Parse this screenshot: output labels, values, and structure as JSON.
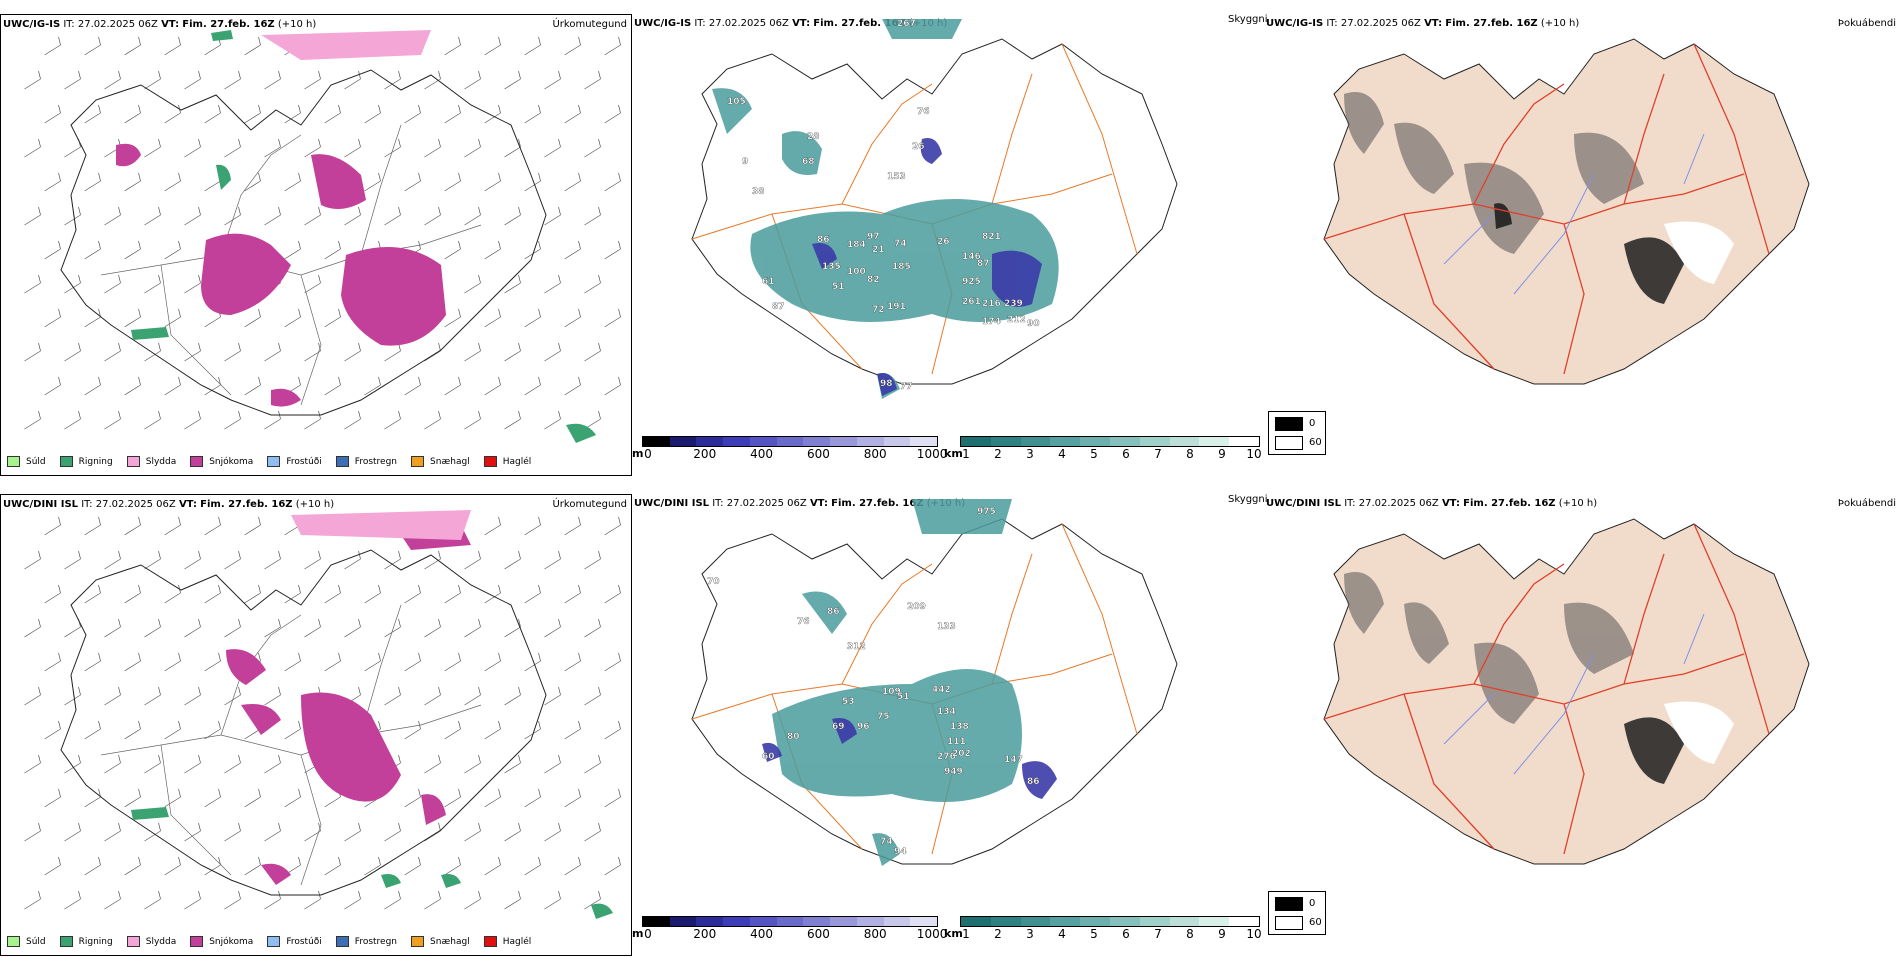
{
  "rows": [
    {
      "model": "UWC/IG-IS",
      "it": "IT: 27.02.2025 06Z",
      "vt_label": "VT:",
      "vt": "Fim. 27.feb. 16Z",
      "lead": "(+10 h)",
      "cloud_labels": [
        "267",
        "105",
        "9",
        "38",
        "68",
        "28",
        "153",
        "26",
        "76",
        "86",
        "184",
        "97",
        "21",
        "135",
        "100",
        "82",
        "51",
        "185",
        "74",
        "26",
        "146",
        "87",
        "821",
        "925",
        "61",
        "87",
        "72",
        "191",
        "261",
        "216",
        "239",
        "174",
        "212",
        "90",
        "98",
        "77"
      ]
    },
    {
      "model": "UWC/DINI ISL",
      "it": "IT: 27.02.2025 06Z",
      "vt_label": "VT:",
      "vt": "Fim. 27.feb. 16Z",
      "lead": "(+10 h)",
      "cloud_labels": [
        "975",
        "70",
        "76",
        "86",
        "209",
        "133",
        "312",
        "109",
        "51",
        "442",
        "53",
        "69",
        "96",
        "75",
        "134",
        "138",
        "80",
        "111",
        "60",
        "276",
        "202",
        "949",
        "147",
        "86",
        "74",
        "94"
      ]
    }
  ],
  "titles": {
    "precip_type": "Úrkomutegund",
    "visibility": "Skyggni",
    "fog": "Þokuábendi"
  },
  "precip_legend": [
    {
      "label": "Súld",
      "color": "#a6f28f"
    },
    {
      "label": "Rigning",
      "color": "#3ba272"
    },
    {
      "label": "Slydda",
      "color": "#f4a6d7"
    },
    {
      "label": "Snjókoma",
      "color": "#c2409a"
    },
    {
      "label": "Frostúði",
      "color": "#8fbff0"
    },
    {
      "label": "Frostregn",
      "color": "#3c6fb4"
    },
    {
      "label": "Snæhagl",
      "color": "#f0a020"
    },
    {
      "label": "Haglél",
      "color": "#e01010"
    }
  ],
  "cloudbase_bar": {
    "unit": "m",
    "ticks": [
      "0",
      "200",
      "400",
      "600",
      "800",
      "1000"
    ],
    "colors": [
      "#000000",
      "#1a1a6e",
      "#2b2b9a",
      "#3d3db8",
      "#5454c4",
      "#6a6acb",
      "#8080d2",
      "#9898da",
      "#b0b0e2",
      "#c8c8ea",
      "#e0e0f4"
    ]
  },
  "visibility_bar": {
    "unit": "km",
    "ticks": [
      "1",
      "2",
      "3",
      "4",
      "5",
      "6",
      "7",
      "8",
      "9",
      "10"
    ],
    "colors": [
      "#1e7070",
      "#2f8080",
      "#409090",
      "#55a0a0",
      "#6cb0ae",
      "#85c0bc",
      "#a0d0ca",
      "#bce0d8",
      "#d8f0e8",
      "#ffffff"
    ]
  },
  "fog_legend": {
    "high": "0",
    "low": "60"
  },
  "colors": {
    "snow": "#c2409a",
    "rain": "#3ba272",
    "sleet": "#f4a6d7",
    "cloud_teal": "#4a9c9c",
    "cloud_blue": "#3b3ba8",
    "roads": "#e87a2a",
    "land_fog": "#f1dccb",
    "rivers": "#8090e8"
  }
}
